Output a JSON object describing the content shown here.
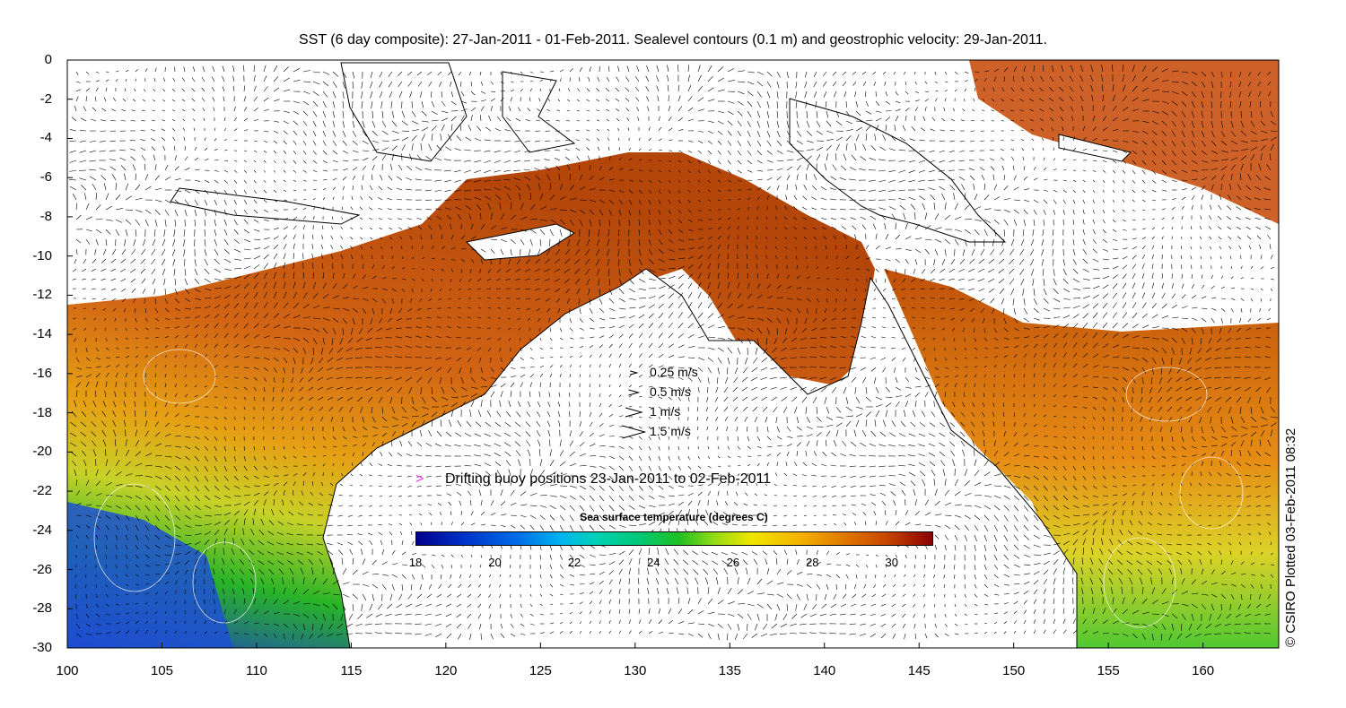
{
  "title": "SST (6 day composite): 27-Jan-2011 - 01-Feb-2011. Sealevel contours (0.1 m) and geostrophic velocity: 29-Jan-2011.",
  "map": {
    "lon_range": [
      100,
      164
    ],
    "lat_range": [
      -30,
      0
    ],
    "x_ticks": [
      "100",
      "105",
      "110",
      "115",
      "120",
      "125",
      "130",
      "135",
      "140",
      "145",
      "150",
      "155",
      "160"
    ],
    "y_ticks": [
      "0",
      "-2",
      "-4",
      "-6",
      "-8",
      "-10",
      "-12",
      "-14",
      "-16",
      "-18",
      "-20",
      "-22",
      "-24",
      "-26",
      "-28",
      "-30"
    ],
    "contour_interval_m": 0.1
  },
  "velocity_legend": {
    "items": [
      {
        "label": "0.25 m/s",
        "speed": 0.25
      },
      {
        "label": "0.5 m/s",
        "speed": 0.5
      },
      {
        "label": "1 m/s",
        "speed": 1
      },
      {
        "label": "1.5 m/s",
        "speed": 1.5
      }
    ]
  },
  "buoy_legend": {
    "marker": ">",
    "label": "Drifting buoy positions 23-Jan-2011 to 02-Feb-2011",
    "color": "#e040e0"
  },
  "colorbar": {
    "title": "Sea surface temperature (degrees C)",
    "range": [
      18,
      31
    ],
    "ticks": [
      "18",
      "20",
      "22",
      "24",
      "26",
      "28",
      "30"
    ]
  },
  "credit": "© CSIRO Plotted 03-Feb-2011 08:32",
  "colors": {
    "cool": "#1e50d2",
    "mid": "#28b428",
    "warm": "#dc7814",
    "hot": "#b43c0a",
    "land": "#ffffff"
  }
}
